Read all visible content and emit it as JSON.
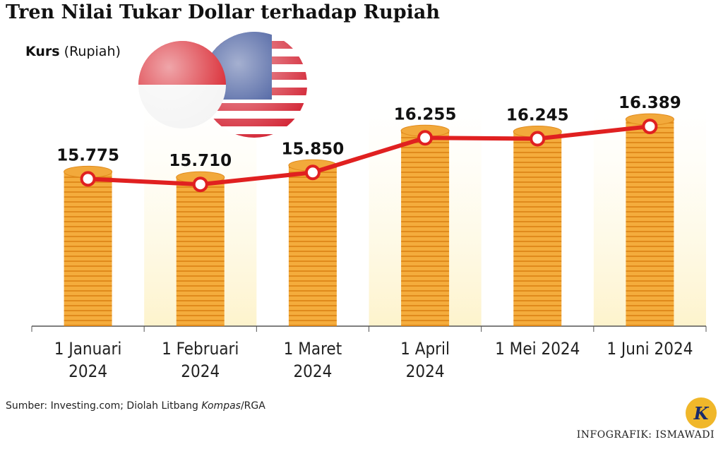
{
  "chart_data": {
    "type": "bar",
    "title": "Tren Nilai Tukar Dollar terhadap Rupiah",
    "y_label": {
      "name": "Kurs",
      "unit": "(Rupiah)"
    },
    "categories": [
      "1 Januari 2024",
      "1 Februari 2024",
      "1 Maret 2024",
      "1 April 2024",
      "1 Mei 2024",
      "1 Juni 2024"
    ],
    "values": [
      15775,
      15710,
      15850,
      16255,
      16245,
      16389
    ],
    "value_labels": [
      "15.775",
      "15.710",
      "15.850",
      "16.255",
      "16.245",
      "16.389"
    ],
    "color": "#f2a93b",
    "line_color": "#e02020",
    "ylim": [
      14050,
      16650
    ],
    "source": [
      "Sumber: Investing.com; Diolah Litbang ",
      "Kompas",
      "/RGA"
    ],
    "credit": "INFOGRAFIK: ISMAWADI",
    "logo": "K"
  }
}
